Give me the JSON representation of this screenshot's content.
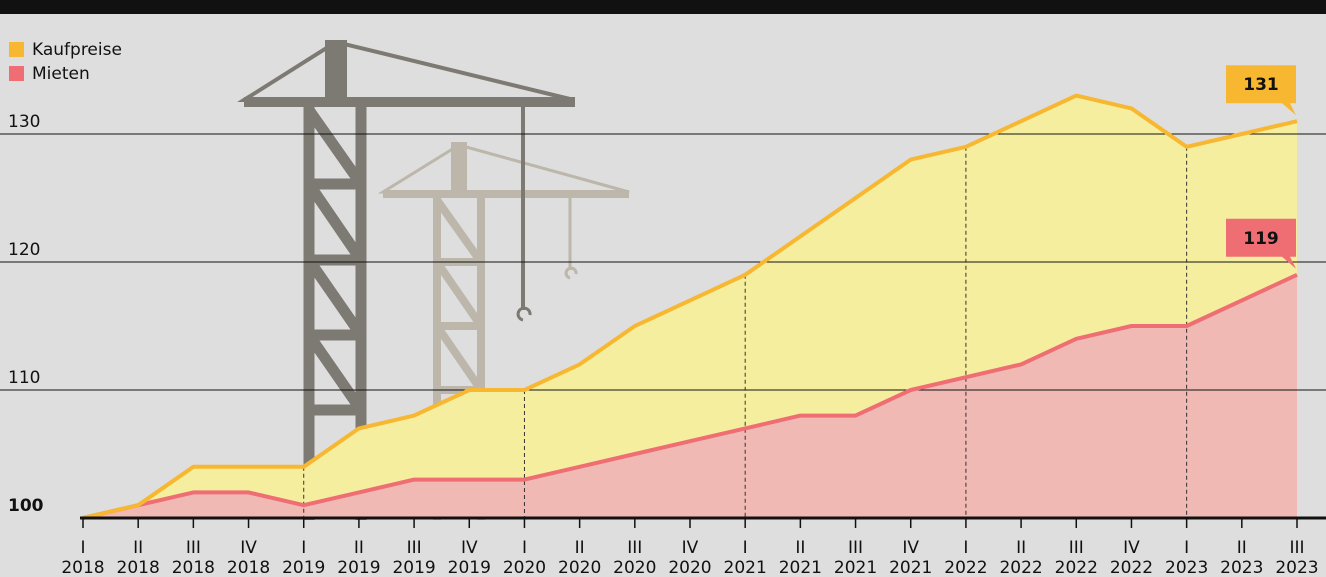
{
  "chart_data": {
    "type": "area",
    "categories": [
      {
        "quarter": "I",
        "year": "2018"
      },
      {
        "quarter": "II",
        "year": "2018"
      },
      {
        "quarter": "III",
        "year": "2018"
      },
      {
        "quarter": "IV",
        "year": "2018"
      },
      {
        "quarter": "I",
        "year": "2019"
      },
      {
        "quarter": "II",
        "year": "2019"
      },
      {
        "quarter": "III",
        "year": "2019"
      },
      {
        "quarter": "IV",
        "year": "2019"
      },
      {
        "quarter": "I",
        "year": "2020"
      },
      {
        "quarter": "II",
        "year": "2020"
      },
      {
        "quarter": "III",
        "year": "2020"
      },
      {
        "quarter": "IV",
        "year": "2020"
      },
      {
        "quarter": "I",
        "year": "2021"
      },
      {
        "quarter": "II",
        "year": "2021"
      },
      {
        "quarter": "III",
        "year": "2021"
      },
      {
        "quarter": "IV",
        "year": "2021"
      },
      {
        "quarter": "I",
        "year": "2022"
      },
      {
        "quarter": "II",
        "year": "2022"
      },
      {
        "quarter": "III",
        "year": "2022"
      },
      {
        "quarter": "IV",
        "year": "2022"
      },
      {
        "quarter": "I",
        "year": "2023"
      },
      {
        "quarter": "II",
        "year": "2023"
      },
      {
        "quarter": "III",
        "year": "2023"
      }
    ],
    "series": [
      {
        "name": "Kaufpreise",
        "color": "#f7b731",
        "fill": "#f6ee9f",
        "values": [
          100,
          101,
          104,
          104,
          104,
          107,
          108,
          110,
          110,
          112,
          115,
          117,
          119,
          122,
          125,
          128,
          129,
          131,
          133,
          132,
          129,
          130,
          131
        ]
      },
      {
        "name": "Mieten",
        "color": "#ee6e73",
        "fill": "#f0b9b4",
        "values": [
          100,
          101,
          102,
          102,
          101,
          102,
          103,
          103,
          103,
          104,
          105,
          106,
          107,
          108,
          108,
          110,
          111,
          112,
          114,
          115,
          115,
          117,
          119
        ]
      }
    ],
    "ylim": [
      100,
      138
    ],
    "yticks": [
      100,
      110,
      120,
      130
    ],
    "grid": true,
    "legend": "top-left"
  }
}
